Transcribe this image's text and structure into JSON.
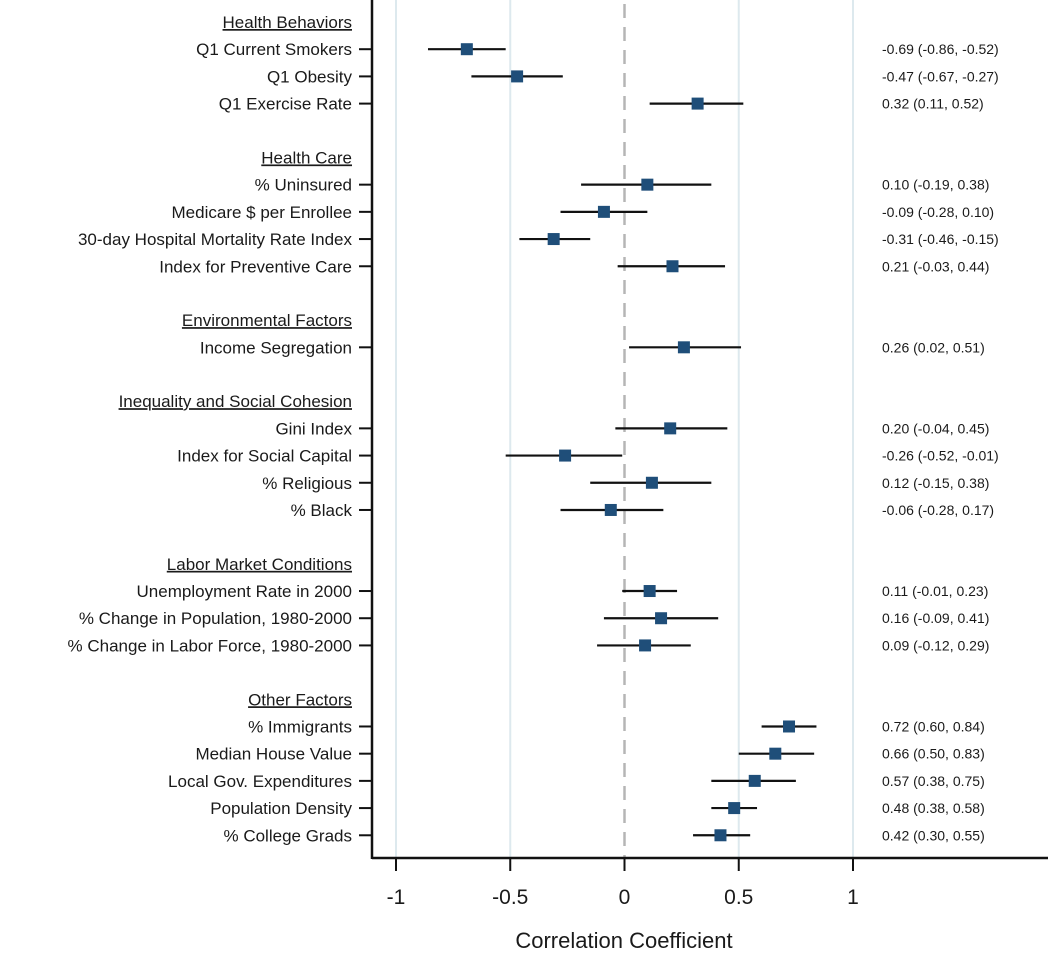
{
  "chart_data": {
    "type": "forest",
    "xlabel": "Correlation Coefficient",
    "xlim": [
      -1.12,
      1.85
    ],
    "xticks": [
      -1,
      -0.5,
      0,
      0.5,
      1
    ],
    "xtick_labels": [
      "-1",
      "-0.5",
      "0",
      "0.5",
      "1"
    ],
    "grid": true,
    "reference_line": 0,
    "marker_color": "#1f4e79",
    "groups": [
      {
        "name": "Health Behaviors",
        "items": [
          {
            "label": "Q1 Current Smokers",
            "estimate": -0.69,
            "lower": -0.86,
            "upper": -0.52,
            "text": "-0.69 (-0.86, -0.52)"
          },
          {
            "label": "Q1 Obesity",
            "estimate": -0.47,
            "lower": -0.67,
            "upper": -0.27,
            "text": "-0.47 (-0.67, -0.27)"
          },
          {
            "label": "Q1 Exercise Rate",
            "estimate": 0.32,
            "lower": 0.11,
            "upper": 0.52,
            "text": "0.32 (0.11, 0.52)"
          }
        ]
      },
      {
        "name": "Health Care",
        "items": [
          {
            "label": "% Uninsured",
            "estimate": 0.1,
            "lower": -0.19,
            "upper": 0.38,
            "text": "0.10 (-0.19, 0.38)"
          },
          {
            "label": "Medicare $ per Enrollee",
            "estimate": -0.09,
            "lower": -0.28,
            "upper": 0.1,
            "text": "-0.09 (-0.28, 0.10)"
          },
          {
            "label": "30-day Hospital Mortality Rate Index",
            "estimate": -0.31,
            "lower": -0.46,
            "upper": -0.15,
            "text": "-0.31 (-0.46, -0.15)"
          },
          {
            "label": "Index for Preventive Care",
            "estimate": 0.21,
            "lower": -0.03,
            "upper": 0.44,
            "text": "0.21 (-0.03, 0.44)"
          }
        ]
      },
      {
        "name": "Environmental Factors",
        "items": [
          {
            "label": "Income Segregation",
            "estimate": 0.26,
            "lower": 0.02,
            "upper": 0.51,
            "text": "0.26 (0.02, 0.51)"
          }
        ]
      },
      {
        "name": "Inequality  and Social Cohesion",
        "items": [
          {
            "label": "Gini Index",
            "estimate": 0.2,
            "lower": -0.04,
            "upper": 0.45,
            "text": "0.20 (-0.04, 0.45)"
          },
          {
            "label": "Index for Social Capital",
            "estimate": -0.26,
            "lower": -0.52,
            "upper": -0.01,
            "text": "-0.26 (-0.52, -0.01)"
          },
          {
            "label": "% Religious",
            "estimate": 0.12,
            "lower": -0.15,
            "upper": 0.38,
            "text": "0.12 (-0.15, 0.38)"
          },
          {
            "label": "% Black",
            "estimate": -0.06,
            "lower": -0.28,
            "upper": 0.17,
            "text": "-0.06 (-0.28, 0.17)"
          }
        ]
      },
      {
        "name": "Labor Market Conditions",
        "items": [
          {
            "label": "Unemployment Rate in 2000",
            "estimate": 0.11,
            "lower": -0.01,
            "upper": 0.23,
            "text": "0.11 (-0.01, 0.23)"
          },
          {
            "label": "% Change in Population, 1980-2000",
            "estimate": 0.16,
            "lower": -0.09,
            "upper": 0.41,
            "text": "0.16 (-0.09, 0.41)"
          },
          {
            "label": "% Change in Labor Force, 1980-2000",
            "estimate": 0.09,
            "lower": -0.12,
            "upper": 0.29,
            "text": "0.09 (-0.12, 0.29)"
          }
        ]
      },
      {
        "name": "Other Factors",
        "items": [
          {
            "label": "% Immigrants",
            "estimate": 0.72,
            "lower": 0.6,
            "upper": 0.84,
            "text": "0.72 (0.60, 0.84)"
          },
          {
            "label": "Median House Value",
            "estimate": 0.66,
            "lower": 0.5,
            "upper": 0.83,
            "text": "0.66 (0.50, 0.83)"
          },
          {
            "label": "Local Gov. Expenditures",
            "estimate": 0.57,
            "lower": 0.38,
            "upper": 0.75,
            "text": "0.57 (0.38, 0.75)"
          },
          {
            "label": "Population Density",
            "estimate": 0.48,
            "lower": 0.38,
            "upper": 0.58,
            "text": "0.48 (0.38, 0.58)"
          },
          {
            "label": "% College Grads",
            "estimate": 0.42,
            "lower": 0.3,
            "upper": 0.55,
            "text": "0.42 (0.30, 0.55)"
          }
        ]
      }
    ]
  }
}
